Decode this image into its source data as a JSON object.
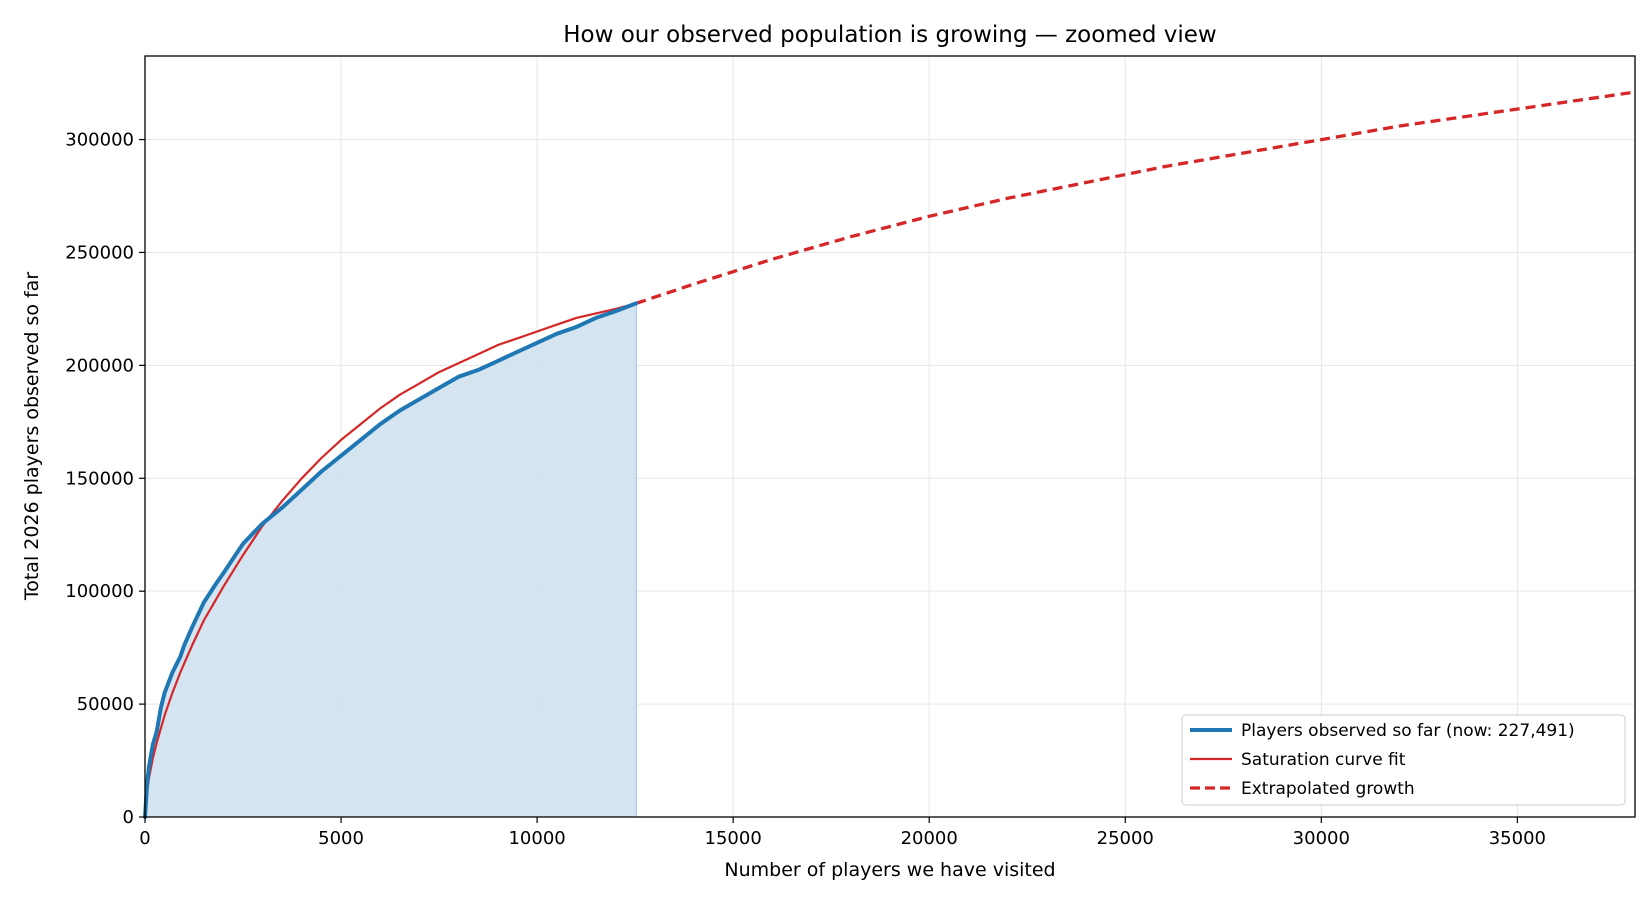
{
  "chart_data": {
    "type": "line",
    "title": "How our observed population is growing  —  zoomed view",
    "xlabel": "Number of players we have visited",
    "ylabel": "Total 2026 players observed so far",
    "xlim": [
      0,
      38000
    ],
    "ylim": [
      0,
      337000
    ],
    "xticks": [
      0,
      5000,
      10000,
      15000,
      20000,
      25000,
      30000,
      35000
    ],
    "yticks": [
      0,
      50000,
      100000,
      150000,
      200000,
      250000,
      300000
    ],
    "grid": true,
    "legend_position": "bottom-right",
    "colors": {
      "observed": "#1f77b4",
      "fill": "#cfe1ee",
      "fit": "#d62728",
      "extrapolated": "#d62728"
    },
    "series": [
      {
        "name": "Players observed so far  (now: 227,491)",
        "style": "solid-thick",
        "filled": true,
        "x": [
          0,
          50,
          100,
          200,
          300,
          400,
          500,
          700,
          900,
          1000,
          1200,
          1500,
          1800,
          2000,
          2500,
          3000,
          3500,
          4000,
          4500,
          5000,
          5500,
          6000,
          6500,
          7000,
          7500,
          8000,
          8500,
          9000,
          9500,
          10000,
          10500,
          11000,
          11500,
          12000,
          12530
        ],
        "y": [
          0,
          14000,
          22000,
          32000,
          38000,
          48000,
          55000,
          64000,
          71000,
          76000,
          84000,
          95000,
          103000,
          108000,
          121000,
          130000,
          137000,
          145000,
          153000,
          160000,
          167000,
          174000,
          180000,
          185000,
          190000,
          195000,
          198000,
          202000,
          206000,
          210000,
          214000,
          217000,
          221000,
          224000,
          227491
        ]
      },
      {
        "name": "Saturation curve fit",
        "style": "solid",
        "x": [
          0,
          50,
          100,
          200,
          300,
          400,
          500,
          700,
          900,
          1000,
          1200,
          1500,
          1800,
          2000,
          2500,
          3000,
          3500,
          4000,
          4500,
          5000,
          5500,
          6000,
          6500,
          7000,
          7500,
          8000,
          8500,
          9000,
          9500,
          10000,
          10500,
          11000,
          11500,
          12000,
          12530
        ],
        "y": [
          0,
          11000,
          17000,
          26000,
          33000,
          39000,
          45000,
          55000,
          64000,
          68000,
          76000,
          87000,
          96000,
          102000,
          116000,
          129000,
          140000,
          150000,
          159000,
          167000,
          174000,
          181000,
          187000,
          192000,
          197000,
          201000,
          205000,
          209000,
          212000,
          215000,
          218000,
          221000,
          223000,
          225000,
          227491
        ]
      },
      {
        "name": "Extrapolated growth",
        "style": "dashed",
        "x": [
          12530,
          14000,
          16000,
          18000,
          20000,
          22000,
          24000,
          26000,
          28000,
          30000,
          32000,
          34000,
          36000,
          38000
        ],
        "y": [
          227491,
          236000,
          247000,
          257000,
          266000,
          274000,
          281000,
          288000,
          294000,
          300000,
          306000,
          311000,
          316000,
          321000
        ]
      }
    ]
  }
}
